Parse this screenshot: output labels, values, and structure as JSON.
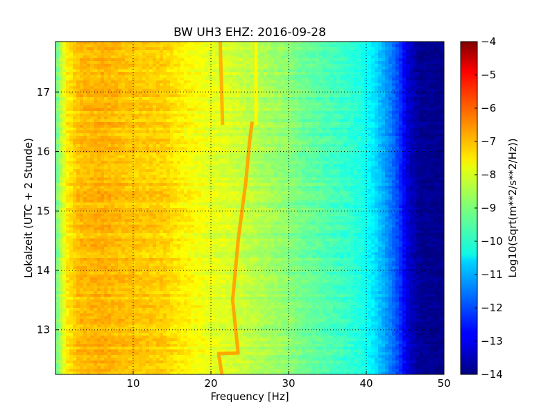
{
  "chart_data": {
    "type": "heatmap",
    "title": "BW UH3 EHZ: 2016-09-28",
    "xlabel": "Frequency [Hz]",
    "ylabel": "Lokalzeit (UTC + 2 Stunde)",
    "xlim": [
      0,
      50
    ],
    "ylim": [
      17.85,
      12.25
    ],
    "x_ticks": [
      {
        "value": 10,
        "label": "10"
      },
      {
        "value": 20,
        "label": "20"
      },
      {
        "value": 30,
        "label": "30"
      },
      {
        "value": 40,
        "label": "40"
      },
      {
        "value": 50,
        "label": "50"
      }
    ],
    "y_ticks": [
      {
        "value": 13,
        "label": "13"
      },
      {
        "value": 14,
        "label": "14"
      },
      {
        "value": 15,
        "label": "15"
      },
      {
        "value": 16,
        "label": "16"
      },
      {
        "value": 17,
        "label": "17"
      }
    ],
    "grid": true,
    "colorbar": {
      "label": "Log10(Sqrt(m**2/s**2/Hz))",
      "range": [
        -14,
        -4
      ],
      "colormap": "jet",
      "ticks": [
        {
          "value": -4,
          "label": "−4"
        },
        {
          "value": -5,
          "label": "−5"
        },
        {
          "value": -6,
          "label": "−6"
        },
        {
          "value": -7,
          "label": "−7"
        },
        {
          "value": -8,
          "label": "−8"
        },
        {
          "value": -9,
          "label": "−9"
        },
        {
          "value": -10,
          "label": "−10"
        },
        {
          "value": -11,
          "label": "−11"
        },
        {
          "value": -12,
          "label": "−12"
        },
        {
          "value": -13,
          "label": "−13"
        },
        {
          "value": -14,
          "label": "−14"
        }
      ]
    },
    "spectral_profile": {
      "frequency_hz": [
        0,
        0.5,
        1.5,
        3,
        6,
        10,
        14,
        16,
        18,
        20,
        22,
        24,
        26,
        28,
        30,
        32,
        34,
        36,
        38,
        39.5,
        41,
        42.5,
        43.5,
        44.5,
        45.5,
        47,
        50
      ],
      "log_amplitude": [
        -9.3,
        -8.6,
        -7.6,
        -7.1,
        -7.0,
        -7.2,
        -7.3,
        -7.6,
        -7.8,
        -8.0,
        -8.1,
        -8.3,
        -8.5,
        -8.7,
        -8.9,
        -9.2,
        -9.4,
        -9.6,
        -9.8,
        -10.0,
        -10.5,
        -11.2,
        -11.7,
        -12.4,
        -13.3,
        -13.8,
        -13.9
      ]
    },
    "line_features": [
      {
        "time": [
          12.25,
          12.6,
          12.61,
          13.5,
          14.5,
          15.5,
          16.2,
          16.5
        ],
        "frequency_hz": [
          21.4,
          21.0,
          23.5,
          22.8,
          23.5,
          24.5,
          25.0,
          25.3
        ],
        "log_amplitude": -6.9
      },
      {
        "time": [
          16.45,
          17.85
        ],
        "frequency_hz": [
          21.5,
          21.2
        ],
        "log_amplitude": -7.0
      },
      {
        "time": [
          16.45,
          17.85
        ],
        "frequency_hz": [
          25.8,
          25.8
        ],
        "log_amplitude": -7.7
      }
    ]
  }
}
